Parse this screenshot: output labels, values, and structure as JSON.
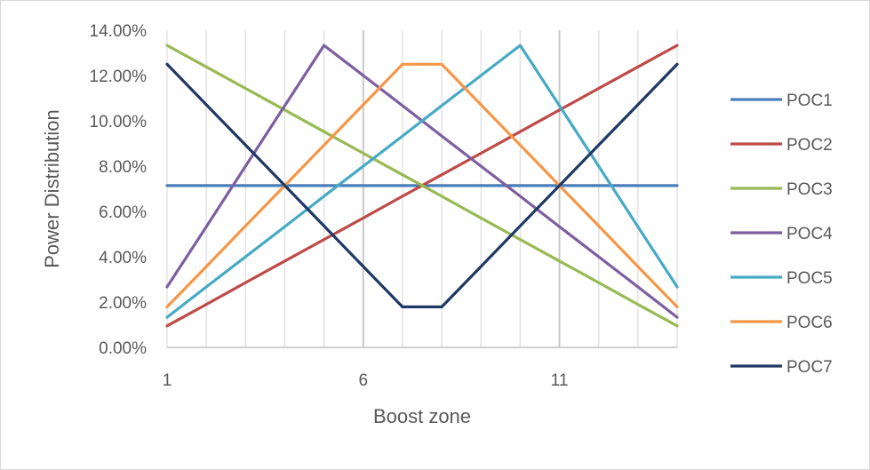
{
  "chart_data": {
    "type": "line",
    "title": "",
    "xlabel": "Boost zone",
    "ylabel": "Power Distribution",
    "x": [
      1,
      2,
      3,
      4,
      5,
      6,
      7,
      8,
      9,
      10,
      11,
      12,
      13,
      14
    ],
    "x_ticks": [
      "1",
      "6",
      "11"
    ],
    "xlim": [
      1,
      14
    ],
    "ylim": [
      0,
      0.14
    ],
    "y_ticks": [
      "0.00%",
      "2.00%",
      "4.00%",
      "6.00%",
      "8.00%",
      "10.00%",
      "12.00%",
      "14.00%"
    ],
    "grid": "vertical gridlines at every zone",
    "legend_position": "right",
    "series": [
      {
        "name": "POC1",
        "color": "#4a7ebb",
        "values": [
          0.0714,
          0.0714,
          0.0714,
          0.0714,
          0.0714,
          0.0714,
          0.0714,
          0.0714,
          0.0714,
          0.0714,
          0.0714,
          0.0714,
          0.0714,
          0.0714
        ]
      },
      {
        "name": "POC2",
        "color": "#be4b48",
        "values": [
          0.0095,
          0.019,
          0.0286,
          0.0381,
          0.0476,
          0.0571,
          0.0667,
          0.0762,
          0.0857,
          0.0952,
          0.1048,
          0.1143,
          0.1238,
          0.1333
        ]
      },
      {
        "name": "POC3",
        "color": "#98b954",
        "values": [
          0.1333,
          0.1238,
          0.1143,
          0.1048,
          0.0952,
          0.0857,
          0.0762,
          0.0667,
          0.0571,
          0.0476,
          0.0381,
          0.0286,
          0.019,
          0.0095
        ]
      },
      {
        "name": "POC4",
        "color": "#7d5fa0",
        "values": [
          0.0267,
          0.0533,
          0.08,
          0.1067,
          0.1333,
          0.12,
          0.1067,
          0.0933,
          0.08,
          0.0667,
          0.0533,
          0.04,
          0.0267,
          0.0133
        ]
      },
      {
        "name": "POC5",
        "color": "#46aac5",
        "values": [
          0.0133,
          0.0267,
          0.04,
          0.0533,
          0.0667,
          0.08,
          0.0933,
          0.1067,
          0.12,
          0.1333,
          0.1067,
          0.08,
          0.0533,
          0.0267
        ]
      },
      {
        "name": "POC6",
        "color": "#f79646",
        "values": [
          0.0179,
          0.0357,
          0.0536,
          0.0714,
          0.0893,
          0.1071,
          0.125,
          0.125,
          0.1071,
          0.0893,
          0.0714,
          0.0536,
          0.0357,
          0.0179
        ]
      },
      {
        "name": "POC7",
        "color": "#1f3864",
        "values": [
          0.125,
          0.1071,
          0.0893,
          0.0714,
          0.0536,
          0.0357,
          0.0179,
          0.0179,
          0.0357,
          0.0536,
          0.0714,
          0.0893,
          0.1071,
          0.125
        ]
      }
    ]
  }
}
